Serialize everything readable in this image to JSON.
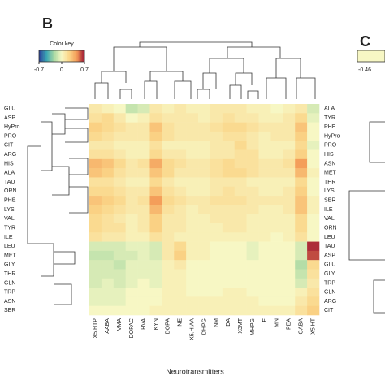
{
  "chart_data": {
    "type": "heatmap",
    "panel_label": "B",
    "colorbar_title": "Color key",
    "x_label": "Neurotransmitters",
    "columns": [
      "X5.HTP",
      "AABA",
      "VMA",
      "DOPAC",
      "HVA",
      "KYN",
      "DOPA",
      "NE",
      "X5.HIAA",
      "DHPG",
      "NM",
      "DA",
      "X3MT",
      "MHPG",
      "E",
      "MN",
      "PEA",
      "GABA",
      "X5.HT"
    ],
    "rows": [
      "GLU",
      "ASP",
      "HyPro",
      "PRO",
      "CIT",
      "ARG",
      "HIS",
      "ALA",
      "TAU",
      "ORN",
      "PHE",
      "LYS",
      "VAL",
      "TYR",
      "ILE",
      "LEU",
      "MET",
      "GLY",
      "THR",
      "GLN",
      "TRP",
      "ASN",
      "SER"
    ],
    "right_labels": [
      "ALA",
      "TYR",
      "PHE",
      "HyPro",
      "PRO",
      "HIS",
      "ASN",
      "MET",
      "THR",
      "LYS",
      "SER",
      "ILE",
      "VAL",
      "ORN",
      "LEU",
      "TAU",
      "ASP",
      "GLU",
      "GLY",
      "TRP",
      "GLN",
      "ARG",
      "CIT"
    ],
    "values": [
      [
        0.1,
        0.05,
        0,
        -0.15,
        -0.1,
        0.1,
        0.05,
        0.1,
        0.05,
        0.05,
        0.1,
        0.1,
        0.1,
        0.05,
        0.05,
        0,
        0.05,
        0.1,
        -0.1
      ],
      [
        0.15,
        0.2,
        0.1,
        0,
        0.05,
        0.15,
        0.1,
        0.1,
        0.1,
        0.05,
        0.1,
        0.15,
        0.1,
        0.1,
        0.05,
        0.05,
        0.1,
        0.2,
        -0.05
      ],
      [
        0.25,
        0.2,
        0.15,
        0.1,
        0.1,
        0.3,
        0.15,
        0.1,
        0.1,
        0.1,
        0.15,
        0.2,
        0.2,
        0.15,
        0.1,
        0.1,
        0.1,
        0.3,
        0
      ],
      [
        0.2,
        0.15,
        0.1,
        0.1,
        0.1,
        0.25,
        0.15,
        0.1,
        0.1,
        0.1,
        0.1,
        0.15,
        0.15,
        0.1,
        0.05,
        0.1,
        0.1,
        0.25,
        0
      ],
      [
        0.1,
        0.1,
        0.05,
        0.05,
        0.05,
        0.15,
        0.05,
        0.05,
        0.05,
        0.05,
        0.1,
        0.1,
        0.2,
        0.1,
        0.05,
        0.05,
        0.05,
        0.2,
        -0.05
      ],
      [
        0.15,
        0.15,
        0.1,
        0.05,
        0.05,
        0.2,
        0.1,
        0.1,
        0.05,
        0.05,
        0.1,
        0.1,
        0.15,
        0.15,
        0.05,
        0.05,
        0.1,
        0.25,
        0
      ],
      [
        0.35,
        0.3,
        0.2,
        0.1,
        0.15,
        0.4,
        0.2,
        0.15,
        0.1,
        0.1,
        0.15,
        0.2,
        0.15,
        0.15,
        0.1,
        0.1,
        0.15,
        0.45,
        0
      ],
      [
        0.3,
        0.25,
        0.15,
        0.1,
        0.1,
        0.3,
        0.2,
        0.1,
        0.1,
        0.1,
        0.15,
        0.2,
        0.2,
        0.15,
        0.1,
        0.1,
        0.1,
        0.35,
        0.05
      ],
      [
        0.15,
        0.15,
        0.1,
        0.05,
        0.05,
        0.2,
        0.1,
        0.05,
        0.05,
        0.05,
        0.1,
        0.1,
        0.1,
        0.05,
        0.05,
        0.05,
        0.05,
        0.2,
        0
      ],
      [
        0.2,
        0.2,
        0.15,
        0.1,
        0.1,
        0.3,
        0.15,
        0.1,
        0.05,
        0.05,
        0.1,
        0.15,
        0.1,
        0.1,
        0.05,
        0.05,
        0.1,
        0.25,
        0
      ],
      [
        0.3,
        0.25,
        0.2,
        0.1,
        0.15,
        0.45,
        0.2,
        0.15,
        0.1,
        0.1,
        0.15,
        0.15,
        0.15,
        0.1,
        0.1,
        0.1,
        0.1,
        0.3,
        0.05
      ],
      [
        0.25,
        0.2,
        0.15,
        0.1,
        0.1,
        0.35,
        0.15,
        0.1,
        0.05,
        0.1,
        0.1,
        0.1,
        0.1,
        0.1,
        0.05,
        0.05,
        0.1,
        0.3,
        0.05
      ],
      [
        0.2,
        0.15,
        0.1,
        0.05,
        0.1,
        0.25,
        0.1,
        0.1,
        0.05,
        0.05,
        0.1,
        0.1,
        0.1,
        0.05,
        0.05,
        0.05,
        0.05,
        0.2,
        0
      ],
      [
        0.2,
        0.15,
        0.15,
        0.05,
        0.1,
        0.25,
        0.1,
        0.1,
        0.05,
        0.05,
        0.05,
        0.1,
        0.1,
        0.05,
        0.05,
        0.05,
        0.05,
        0.2,
        0
      ],
      [
        0.15,
        0.1,
        0.1,
        0.05,
        0.05,
        0.15,
        0.1,
        0.05,
        0.05,
        0.05,
        0.05,
        0.05,
        0.05,
        0.05,
        0.05,
        0,
        0.05,
        0.15,
        0
      ],
      [
        -0.1,
        -0.1,
        -0.1,
        -0.05,
        -0.05,
        -0.1,
        0.1,
        0.2,
        0.05,
        0.05,
        0,
        0,
        0,
        -0.05,
        0,
        0,
        0,
        -0.1,
        0.65
      ],
      [
        -0.15,
        -0.15,
        -0.1,
        -0.1,
        -0.05,
        -0.1,
        0.1,
        0.25,
        0.05,
        0.05,
        0,
        0,
        0,
        -0.05,
        0,
        0,
        0,
        -0.1,
        0.6
      ],
      [
        -0.1,
        -0.1,
        -0.15,
        -0.05,
        -0.05,
        -0.05,
        0.05,
        0.1,
        0,
        0,
        0,
        0,
        0,
        0,
        0,
        0,
        0,
        -0.2,
        0.2
      ],
      [
        -0.1,
        -0.1,
        -0.1,
        -0.05,
        -0.05,
        -0.05,
        0.05,
        0.05,
        0,
        0,
        0,
        0,
        0,
        0,
        0,
        0,
        0,
        -0.15,
        0.15
      ],
      [
        -0.1,
        -0.05,
        -0.1,
        -0.05,
        0,
        -0.05,
        0.05,
        0.05,
        0,
        0,
        0,
        0,
        0,
        0,
        0,
        0,
        0,
        -0.1,
        0.1
      ],
      [
        -0.05,
        -0.05,
        -0.05,
        0,
        0,
        0,
        0.05,
        0.05,
        0,
        0,
        0,
        0.05,
        0.05,
        0,
        0,
        0,
        0,
        0.05,
        0.15
      ],
      [
        -0.05,
        -0.05,
        -0.05,
        0,
        0,
        0,
        0.05,
        0.05,
        0.05,
        0.05,
        0.05,
        0.05,
        0.05,
        0.05,
        0,
        0,
        0,
        0.1,
        0.2
      ],
      [
        0,
        0,
        0,
        0,
        0,
        0.05,
        0.05,
        0.05,
        0.05,
        0.05,
        0.05,
        0.05,
        0.05,
        0.05,
        0.05,
        0.05,
        0.05,
        0.15,
        0.25
      ]
    ],
    "zlim": [
      -0.7,
      0.7
    ],
    "colorbar_ticks": [
      -0.7,
      0,
      0.7
    ],
    "colorscale": [
      "#2b3f99",
      "#3aa6b4",
      "#a9d9a2",
      "#f7f7c4",
      "#fbd587",
      "#f39a57",
      "#9a0f30"
    ],
    "panel_c": {
      "panel_label": "C",
      "colorbar_ticks": [
        -0.46
      ]
    }
  }
}
